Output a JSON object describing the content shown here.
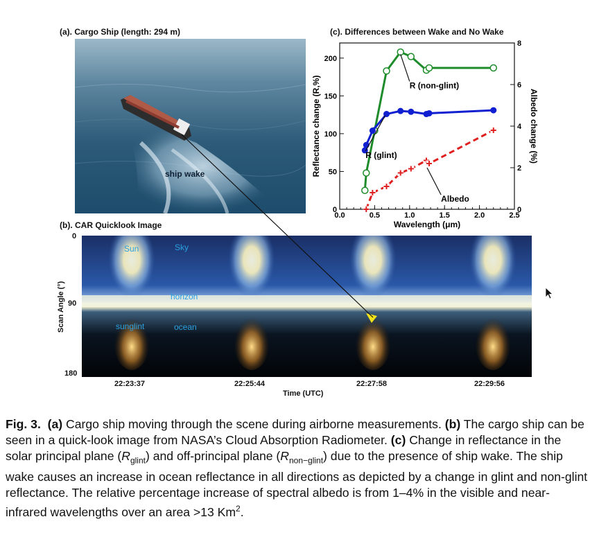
{
  "panel_a": {
    "title": "(a). Cargo Ship (length: 294 m)",
    "wake_label": "ship wake"
  },
  "panel_b": {
    "title": "(b). CAR Quicklook Image",
    "ylabel": "Scan Angle (°)",
    "yticks": [
      "0",
      "90",
      "180"
    ],
    "xlabel": "Time (UTC)",
    "xticks": [
      "22:23:37",
      "22:25:44",
      "22:27:58",
      "22:29:56"
    ],
    "labels": {
      "sun": "Sun",
      "sky": "Sky",
      "horizon": "horizon",
      "sunglint": "sunglint",
      "ocean": "ocean"
    }
  },
  "panel_c": {
    "title": "(c). Differences between Wake and No Wake"
  },
  "chart_data": {
    "type": "line",
    "xlabel": "Wavelength (μm)",
    "ylabel": "Reflectance change (R,%)",
    "y2label": "Albedo change  (%)",
    "xlim": [
      0.0,
      2.5
    ],
    "ylim": [
      0,
      220
    ],
    "y2lim": [
      0,
      8
    ],
    "xticks": [
      "0.0",
      "0.5",
      "1.0",
      "1.5",
      "2.0",
      "2.5"
    ],
    "yticks": [
      "0",
      "50",
      "100",
      "150",
      "200"
    ],
    "y2ticks": [
      "0",
      "2",
      "4",
      "6",
      "8"
    ],
    "series": [
      {
        "name": "R (non-glint)",
        "axis": "left",
        "color": "#1e8c2a",
        "marker": "open-circle",
        "x": [
          0.36,
          0.38,
          0.5,
          0.67,
          0.87,
          1.02,
          1.24,
          1.28,
          2.2
        ],
        "y": [
          25,
          48,
          104,
          183,
          208,
          202,
          184,
          187,
          187
        ]
      },
      {
        "name": "R (glint)",
        "axis": "left",
        "color": "#1020d0",
        "marker": "filled-circle",
        "x": [
          0.36,
          0.38,
          0.47,
          0.67,
          0.87,
          1.02,
          1.24,
          1.28,
          2.2
        ],
        "y": [
          78,
          85,
          104,
          126,
          130,
          129,
          126,
          127,
          131
        ]
      },
      {
        "name": "Albedo",
        "axis": "right",
        "color": "#e02020",
        "marker": "plus",
        "dashed": true,
        "x": [
          0.38,
          0.47,
          0.67,
          0.87,
          1.02,
          1.24,
          1.28,
          2.2
        ],
        "y": [
          0.0,
          0.8,
          1.1,
          1.75,
          1.95,
          2.35,
          2.2,
          3.8
        ]
      }
    ],
    "annotations": [
      "R (non-glint)",
      "R (glint)",
      "Albedo"
    ]
  },
  "caption": {
    "fig": "Fig. 3.",
    "a_tag": "(a)",
    "a_text": " Cargo ship moving through the scene during airborne measurements. ",
    "b_tag": "(b)",
    "b_text": " The cargo ship can be seen in a quick-look image from NASA’s Cloud Absorption Radiometer. ",
    "c_tag": "(c)",
    "c_text1": " Change in reflectance in the solar principal plane (",
    "r_sym1": "R",
    "sub1": "glint",
    "c_text2": ") and off-principal plane (",
    "r_sym2": "R",
    "sub2": "non−glint",
    "c_text3": ") due to the presence of ship wake. The ship wake causes an increase in ocean reflectance in all directions as depicted by a change in glint and non-glint reflectance. The relative percentage increase of spectral albedo is from 1–4% in the visible and near-infrared wavelengths over an area >13 Km",
    "sup": "2",
    "end": "."
  }
}
